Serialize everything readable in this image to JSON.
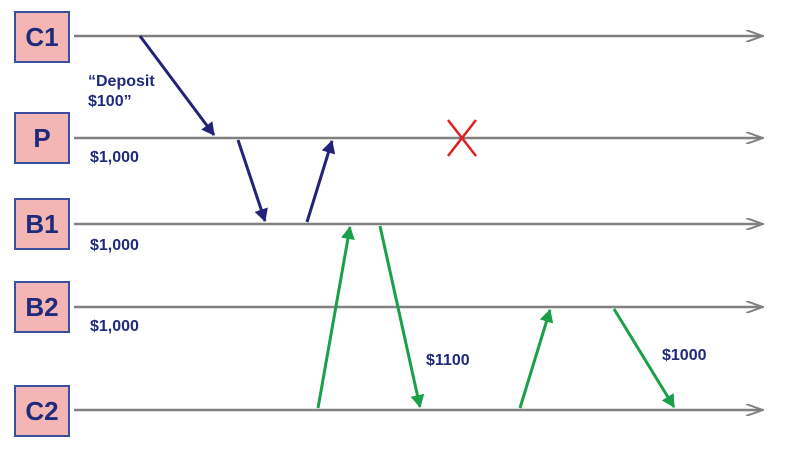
{
  "nodes": [
    {
      "id": "C1",
      "label": "C1"
    },
    {
      "id": "P",
      "label": "P"
    },
    {
      "id": "B1",
      "label": "B1"
    },
    {
      "id": "B2",
      "label": "B2"
    },
    {
      "id": "C2",
      "label": "C2"
    }
  ],
  "notes": {
    "deposit_line1": "“Deposit",
    "deposit_line2": "$100”",
    "p_balance": "$1,000",
    "b1_balance": "$1,000",
    "b2_balance": "$1,000",
    "read_1100": "$1100",
    "read_1000": "$1000"
  },
  "colors": {
    "timeline": "#808080",
    "primary_msg": "#23237a",
    "client_msg": "#1aa048",
    "crash": "#e02020",
    "node_fill": "#f4b6b4",
    "node_border": "#3b4fa0"
  },
  "messages": [
    {
      "from": "C1",
      "to": "P",
      "color": "primary"
    },
    {
      "from": "P",
      "to": "B1",
      "color": "primary"
    },
    {
      "from": "B1",
      "to": "P",
      "color": "primary"
    },
    {
      "from": "C2",
      "to": "B1",
      "color": "client"
    },
    {
      "from": "B1",
      "to": "C2",
      "color": "client"
    },
    {
      "from": "C2",
      "to": "B2",
      "color": "client"
    },
    {
      "from": "B2",
      "to": "C2",
      "color": "client"
    }
  ],
  "events": [
    {
      "node": "P",
      "type": "crash",
      "icon": "x-crash-icon"
    }
  ]
}
